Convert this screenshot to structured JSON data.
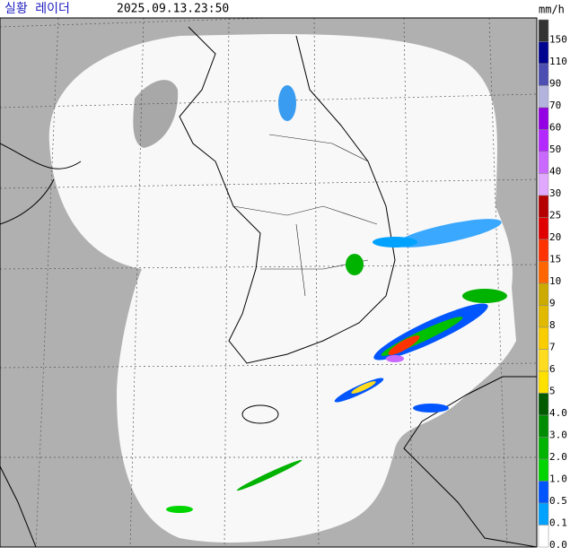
{
  "header": {
    "title": "실황 레이더",
    "timestamp": "2025.09.13.23:50",
    "unit": "mm/h"
  },
  "legend": [
    {
      "label": "150",
      "color": "#333333"
    },
    {
      "label": "110",
      "color": "#00038f"
    },
    {
      "label": "90",
      "color": "#4c4eb1"
    },
    {
      "label": "70",
      "color": "#b3b4de"
    },
    {
      "label": "60",
      "color": "#9300e4"
    },
    {
      "label": "50",
      "color": "#b329ff"
    },
    {
      "label": "40",
      "color": "#c969ff"
    },
    {
      "label": "30",
      "color": "#e0a9ff"
    },
    {
      "label": "25",
      "color": "#b40000"
    },
    {
      "label": "20",
      "color": "#e00000"
    },
    {
      "label": "15",
      "color": "#ff3300"
    },
    {
      "label": "10",
      "color": "#ff6600"
    },
    {
      "label": "9",
      "color": "#ccaa00"
    },
    {
      "label": "8",
      "color": "#e0b900"
    },
    {
      "label": "7",
      "color": "#f9cd00"
    },
    {
      "label": "6",
      "color": "#ffdc1f"
    },
    {
      "label": "5",
      "color": "#ffe100"
    },
    {
      "label": "4.0",
      "color": "#005a00"
    },
    {
      "label": "3.0",
      "color": "#008c00"
    },
    {
      "label": "2.0",
      "color": "#00b300"
    },
    {
      "label": "1.0",
      "color": "#00d500"
    },
    {
      "label": "0.5",
      "color": "#0055ff"
    },
    {
      "label": "0.1",
      "color": "#00a2ff"
    },
    {
      "label": "0.0",
      "color": "#ffffff"
    }
  ]
}
